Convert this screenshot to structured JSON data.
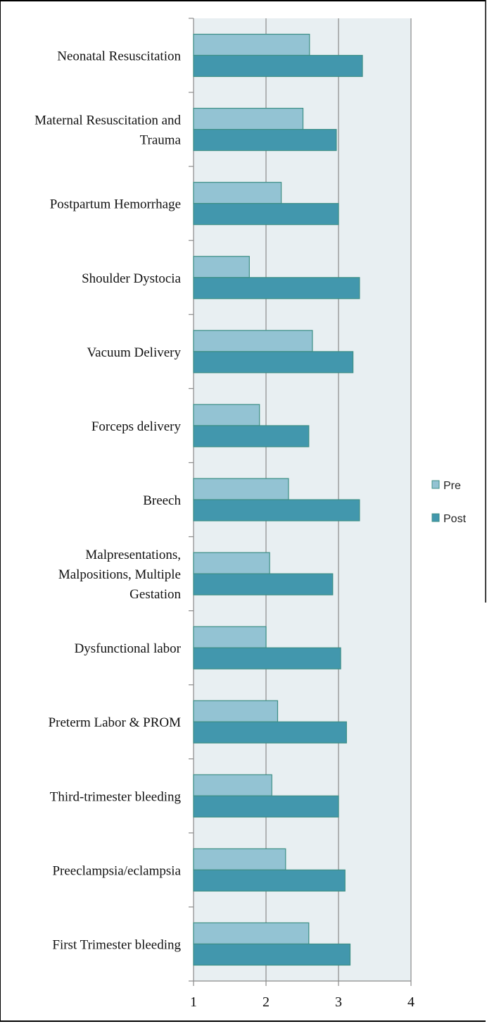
{
  "chart_data": {
    "type": "bar",
    "orientation": "horizontal",
    "categories": [
      "Neonatal Resuscitation",
      "Maternal Resuscitation and Trauma",
      "Postpartum Hemorrhage",
      "Shoulder Dystocia",
      "Vacuum Delivery",
      "Forceps delivery",
      "Breech",
      "Malpresentations, Malpositions, Multiple Gestation",
      "Dysfunctional labor",
      "Preterm Labor & PROM",
      "Third-trimester bleeding",
      "Preeclampsia/eclampsia",
      "First Trimester bleeding"
    ],
    "category_label_lines": [
      [
        "Neonatal Resuscitation"
      ],
      [
        "Maternal Resuscitation and",
        "Trauma"
      ],
      [
        "Postpartum Hemorrhage"
      ],
      [
        "Shoulder Dystocia"
      ],
      [
        "Vacuum Delivery"
      ],
      [
        "Forceps delivery"
      ],
      [
        "Breech"
      ],
      [
        "Malpresentations,",
        "Malpositions, Multiple",
        "Gestation"
      ],
      [
        "Dysfunctional labor"
      ],
      [
        "Preterm Labor & PROM"
      ],
      [
        "Third-trimester bleeding"
      ],
      [
        "Preeclampsia/eclampsia"
      ],
      [
        "First Trimester bleeding"
      ]
    ],
    "series": [
      {
        "name": "Pre",
        "color": "#93c3d3",
        "values": [
          2.6,
          2.51,
          2.21,
          1.77,
          2.64,
          1.91,
          2.31,
          2.05,
          2.0,
          2.16,
          2.08,
          2.27,
          2.59
        ]
      },
      {
        "name": "Post",
        "color": "#4297ad",
        "values": [
          3.33,
          2.97,
          3.0,
          3.29,
          3.2,
          2.59,
          3.29,
          2.92,
          3.03,
          3.11,
          3.0,
          3.09,
          3.16
        ]
      }
    ],
    "xlim": [
      1,
      4
    ],
    "xticks": [
      "1",
      "2",
      "3",
      "4"
    ],
    "grid": true,
    "legend_position": "right",
    "plot_background": "#e8eff2",
    "bar_edge_color": "#3d8f86",
    "title": "",
    "xlabel": "",
    "ylabel": ""
  }
}
